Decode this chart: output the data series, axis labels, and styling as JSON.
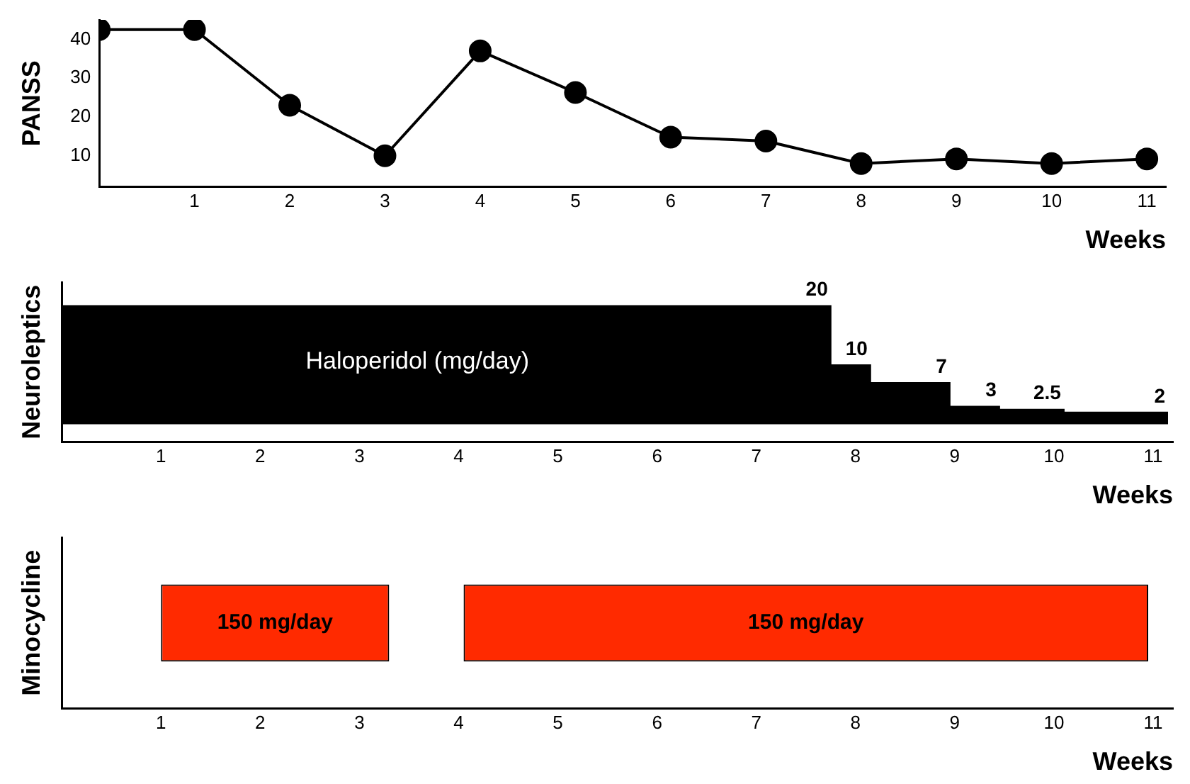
{
  "chart_data": [
    {
      "type": "line",
      "xlabel": "Weeks",
      "ylabel": "PANSS",
      "x": [
        0,
        1,
        2,
        3,
        4,
        5,
        6,
        7,
        8,
        9,
        10,
        11
      ],
      "xlim": [
        0,
        11.2
      ],
      "xticks": [
        1,
        2,
        3,
        4,
        5,
        6,
        7,
        8,
        9,
        10,
        11
      ],
      "ylim": [
        2,
        45
      ],
      "yticks": [
        10,
        20,
        30,
        40
      ],
      "marker": "circle",
      "series": [
        {
          "color": "#000000",
          "values": [
            42.5,
            42.5,
            23,
            10,
            37,
            26.3,
            14.8,
            13.8,
            8,
            9.2,
            8,
            9.2
          ]
        }
      ]
    },
    {
      "type": "area",
      "xlabel": "Weeks",
      "ylabel": "Neuroleptics",
      "x": [
        0,
        7.75,
        7.75,
        8.15,
        8.15,
        8.95,
        8.95,
        9.45,
        9.45,
        10.1,
        10.1,
        11.15
      ],
      "xlim": [
        0,
        11.2
      ],
      "xticks": [
        1,
        2,
        3,
        4,
        5,
        6,
        7,
        8,
        9,
        10,
        11
      ],
      "ylim": [
        -3,
        24
      ],
      "tick_labels": "x",
      "series": [
        {
          "color": "#000000",
          "values": [
            20,
            20,
            10,
            10,
            7,
            7,
            3,
            3,
            2.5,
            2.5,
            2,
            2
          ],
          "value_labels": [
            null,
            "20",
            null,
            "10",
            null,
            "7",
            null,
            "3",
            null,
            "2.5",
            null,
            "2"
          ]
        }
      ],
      "annotations": [
        "Haloperidol (mg/day)"
      ]
    },
    {
      "type": "bar",
      "orientation": "horizontal",
      "xlabel": "Weeks",
      "ylabel": "Minocycline",
      "categories": [
        null
      ],
      "xlim": [
        0,
        11.2
      ],
      "xticks": [
        1,
        2,
        3,
        4,
        5,
        6,
        7,
        8,
        9,
        10,
        11
      ],
      "tick_labels": "x",
      "series": [
        {
          "color": "#ff2a00",
          "base": [
            1
          ],
          "values": [
            2.3
          ]
        },
        {
          "color": "#ff2a00",
          "base": [
            4.05
          ],
          "values": [
            6.9
          ]
        }
      ],
      "annotations": [
        "150 mg/day",
        "150 mg/day"
      ]
    }
  ]
}
